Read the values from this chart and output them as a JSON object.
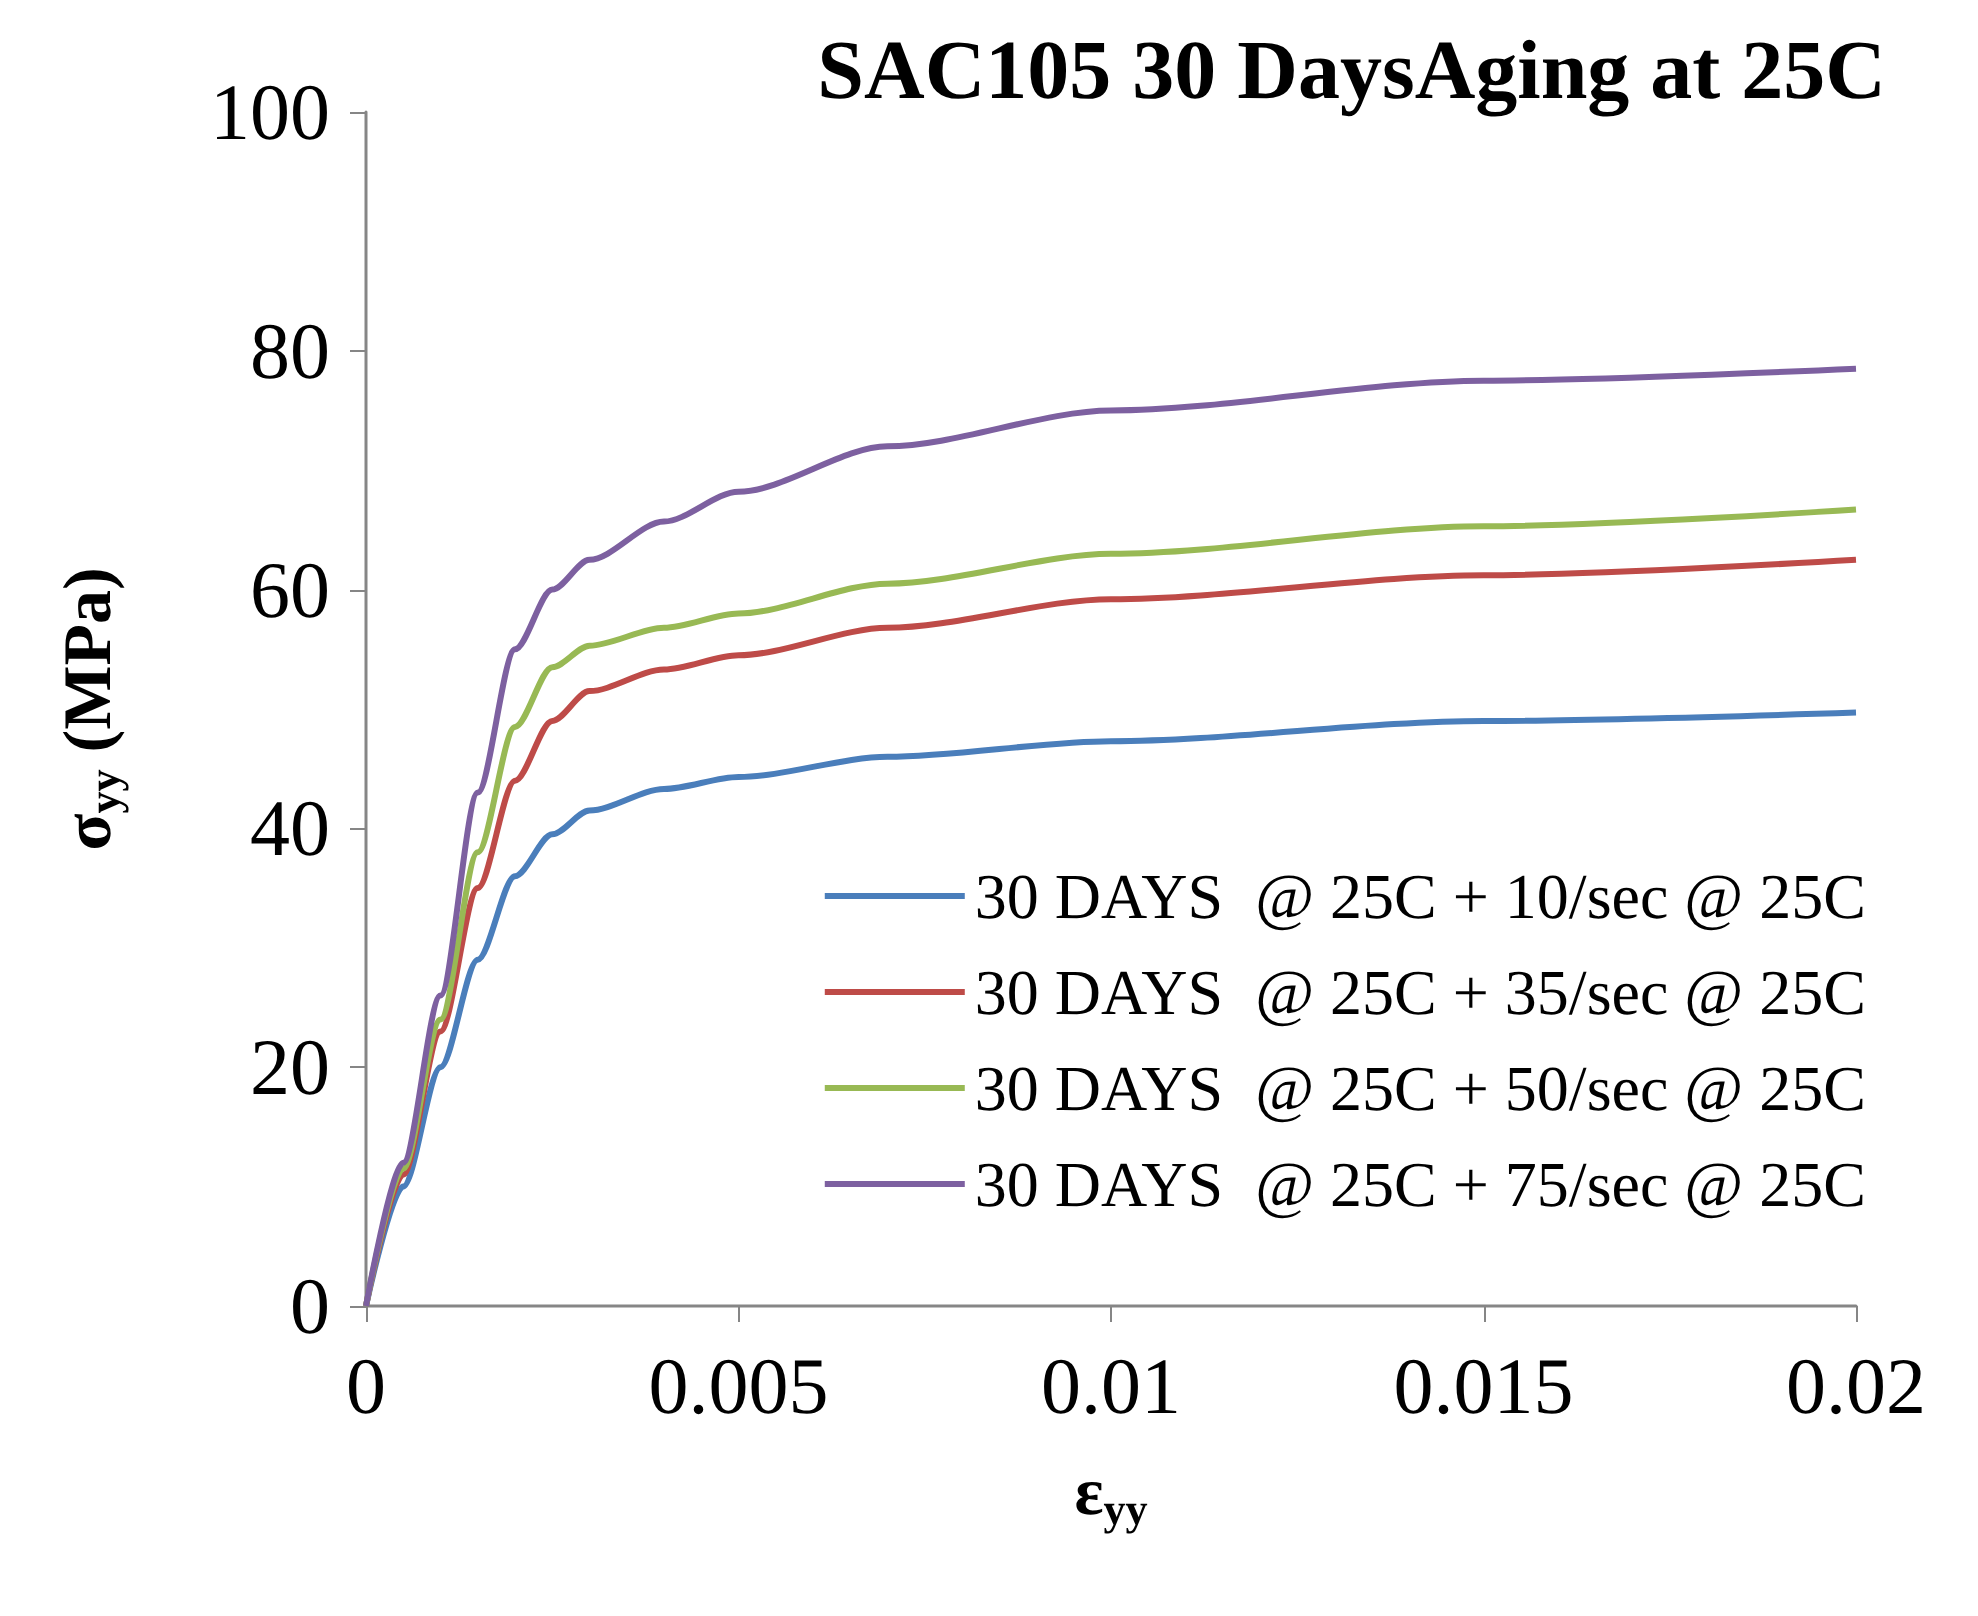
{
  "chart_data": {
    "type": "line",
    "title": "SAC105 30 DaysAging at 25C",
    "xlabel": "ε$_{yy}$",
    "ylabel": "σ$_{yy}$ (MPa)",
    "x": [
      0,
      0.0005,
      0.001,
      0.0015,
      0.002,
      0.0025,
      0.003,
      0.004,
      0.005,
      0.007,
      0.01,
      0.015,
      0.02
    ],
    "series": [
      {
        "name": "30 DAYS  @ 25C + 10/sec @ 25C",
        "color": "#4a7ebb",
        "values": [
          0,
          10,
          20,
          29,
          36,
          39.5,
          41.5,
          43.3,
          44.3,
          46,
          47.3,
          49,
          49.7
        ]
      },
      {
        "name": "30 DAYS  @ 25C + 35/sec @ 25C",
        "color": "#be4b48",
        "values": [
          0,
          11,
          23,
          35,
          44,
          49,
          51.5,
          53.3,
          54.5,
          56.8,
          59.2,
          61.2,
          62.5
        ]
      },
      {
        "name": "30 DAYS  @ 25C + 50/sec @ 25C",
        "color": "#98b954",
        "values": [
          0,
          11.5,
          24,
          38,
          48.5,
          53.5,
          55.3,
          56.8,
          58,
          60.5,
          63,
          65.3,
          66.7
        ]
      },
      {
        "name": "30 DAYS  @ 25C + 75/sec @ 25C",
        "color": "#7d60a0",
        "values": [
          0,
          12,
          26,
          43,
          55,
          60,
          62.5,
          65.7,
          68.2,
          72,
          75,
          77.5,
          78.5
        ]
      }
    ],
    "xlim": [
      0,
      0.02
    ],
    "xticks": [
      0,
      0.005,
      0.01,
      0.015,
      0.02
    ],
    "ylim": [
      0,
      100
    ],
    "yticks": [
      0,
      20,
      40,
      60,
      80,
      100
    ],
    "grid": false,
    "legend": "bottom right",
    "marker": "none",
    "line_style": "solid"
  }
}
